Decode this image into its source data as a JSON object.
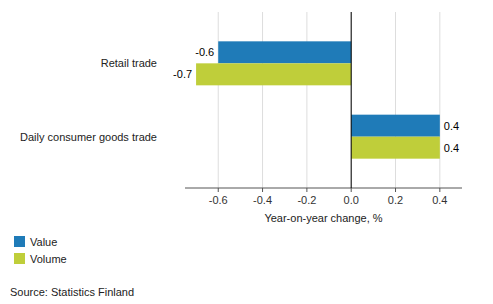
{
  "chart_data": {
    "type": "bar",
    "orientation": "horizontal",
    "categories": [
      "Daily consumer goods trade",
      "Retail trade"
    ],
    "series": [
      {
        "name": "Value",
        "color": "#1F7BB8",
        "values": [
          0.4,
          -0.6
        ]
      },
      {
        "name": "Volume",
        "color": "#BFCE3A",
        "values": [
          0.4,
          -0.7
        ]
      }
    ],
    "xlabel": "Year-on-year change, %",
    "xlim": [
      -0.75,
      0.5
    ],
    "xticks": [
      -0.6,
      -0.4,
      -0.2,
      {
        "value": 0.0,
        "label": "0.0"
      },
      0.2,
      0.4
    ],
    "grid": true,
    "data_labels": true,
    "legend": "lower left",
    "annotations": [
      "Source: Statistics Finland"
    ]
  }
}
